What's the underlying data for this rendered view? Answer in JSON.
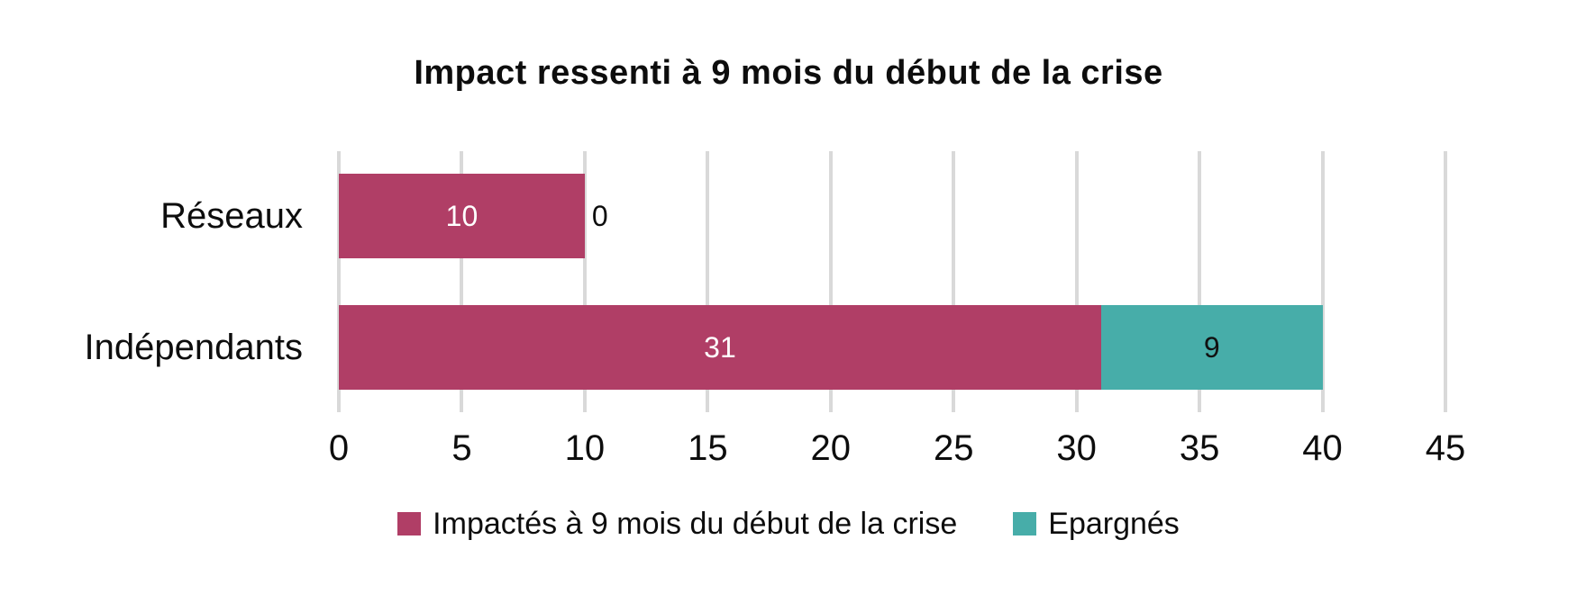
{
  "chart_data": {
    "type": "bar",
    "orientation": "horizontal",
    "stacked": true,
    "title": "Impact ressenti à 9 mois du début de la crise",
    "categories": [
      "Réseaux",
      "Indépendants"
    ],
    "series": [
      {
        "name": "Impactés à 9 mois du début de la crise",
        "color": "#B03E66",
        "label_color": "#FFFFFF",
        "values": [
          10,
          31
        ]
      },
      {
        "name": "Epargnés",
        "color": "#47ADA9",
        "label_color": "#111111",
        "values": [
          0,
          9
        ]
      }
    ],
    "x_axis": {
      "min": 0,
      "max": 45,
      "tick_step": 5,
      "ticks": [
        0,
        5,
        10,
        15,
        20,
        25,
        30,
        35,
        40,
        45
      ]
    },
    "grid": true,
    "legend_position": "bottom",
    "colors": {
      "gridline": "#D9D9D9",
      "text": "#0d0d0d",
      "background": "#FFFFFF"
    }
  }
}
